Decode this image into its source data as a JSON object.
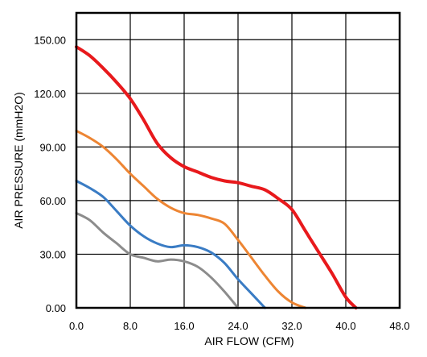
{
  "chart_data": {
    "type": "line",
    "title": "",
    "xlabel": "AIR FLOW  (CFM)",
    "ylabel": "AIR PRESSURE  (mmH2O)",
    "xlim": [
      0,
      48
    ],
    "ylim": [
      0,
      165
    ],
    "x_ticks": [
      "0.0",
      "8.0",
      "16.0",
      "24.0",
      "32.0",
      "40.0",
      "48.0"
    ],
    "y_ticks": [
      "0.00",
      "30.00",
      "60.00",
      "90.00",
      "120.00",
      "150.00"
    ],
    "x_tick_values": [
      0,
      8,
      16,
      24,
      32,
      40,
      48
    ],
    "y_tick_values": [
      0,
      30,
      60,
      90,
      120,
      150
    ],
    "grid": true,
    "series": [
      {
        "color": "#e8191c",
        "points": [
          [
            0,
            146
          ],
          [
            2,
            141
          ],
          [
            4,
            134
          ],
          [
            6,
            126
          ],
          [
            8,
            117
          ],
          [
            10,
            105
          ],
          [
            12,
            92
          ],
          [
            14,
            84
          ],
          [
            16,
            79
          ],
          [
            18,
            76
          ],
          [
            20,
            73
          ],
          [
            22,
            71
          ],
          [
            24,
            70
          ],
          [
            26,
            68
          ],
          [
            28,
            66
          ],
          [
            30,
            61
          ],
          [
            32,
            55
          ],
          [
            34,
            43
          ],
          [
            36,
            31
          ],
          [
            38,
            19
          ],
          [
            40,
            6
          ],
          [
            41.5,
            0
          ]
        ]
      },
      {
        "color": "#ed8533",
        "points": [
          [
            0,
            99
          ],
          [
            2,
            95
          ],
          [
            4,
            90
          ],
          [
            6,
            83
          ],
          [
            8,
            75
          ],
          [
            10,
            68
          ],
          [
            12,
            61
          ],
          [
            14,
            56
          ],
          [
            16,
            53
          ],
          [
            18,
            52
          ],
          [
            20,
            50
          ],
          [
            22,
            47
          ],
          [
            24,
            38
          ],
          [
            26,
            28
          ],
          [
            28,
            18
          ],
          [
            30,
            9
          ],
          [
            32,
            3
          ],
          [
            34,
            0
          ]
        ]
      },
      {
        "color": "#3a7cc4",
        "points": [
          [
            0,
            71
          ],
          [
            2,
            67
          ],
          [
            4,
            62
          ],
          [
            6,
            54
          ],
          [
            8,
            46
          ],
          [
            10,
            40
          ],
          [
            12,
            36
          ],
          [
            14,
            34
          ],
          [
            16,
            35
          ],
          [
            18,
            34
          ],
          [
            20,
            31
          ],
          [
            22,
            25
          ],
          [
            24,
            16
          ],
          [
            26,
            8
          ],
          [
            28,
            0
          ]
        ]
      },
      {
        "color": "#8c8c8c",
        "points": [
          [
            0,
            53
          ],
          [
            2,
            49
          ],
          [
            4,
            42
          ],
          [
            6,
            36
          ],
          [
            8,
            30
          ],
          [
            10,
            28
          ],
          [
            12,
            26
          ],
          [
            14,
            27
          ],
          [
            16,
            26
          ],
          [
            18,
            23
          ],
          [
            20,
            17
          ],
          [
            22,
            9
          ],
          [
            24,
            0
          ]
        ]
      }
    ]
  }
}
